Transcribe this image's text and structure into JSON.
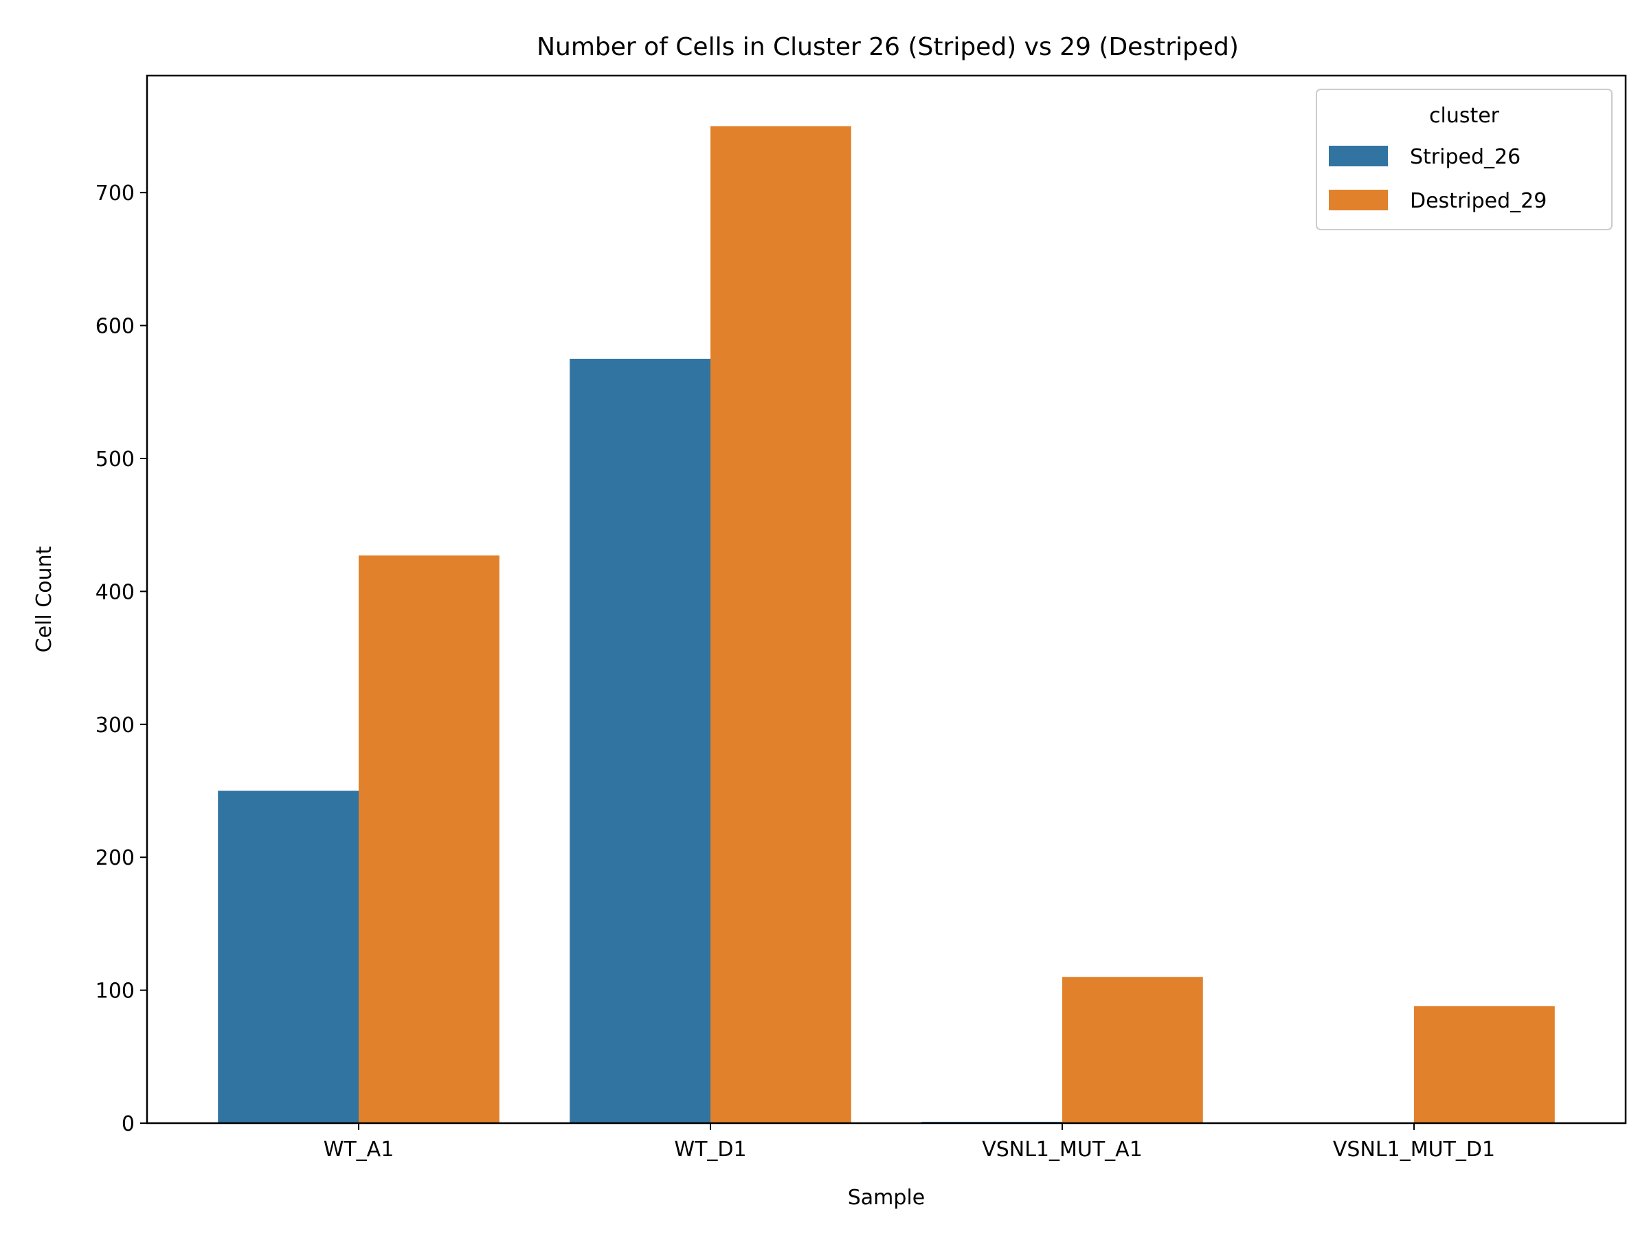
{
  "chart_data": {
    "type": "bar",
    "title": "Number of Cells in Cluster 26 (Striped) vs 29 (Destriped)",
    "xlabel": "Sample",
    "ylabel": "Cell Count",
    "categories": [
      "WT_A1",
      "WT_D1",
      "VSNL1_MUT_A1",
      "VSNL1_MUT_D1"
    ],
    "series": [
      {
        "name": "Striped_26",
        "color": "#3274a1",
        "values": [
          250,
          575,
          1,
          0
        ]
      },
      {
        "name": "Destriped_29",
        "color": "#e1812c",
        "values": [
          427,
          750,
          110,
          88
        ]
      }
    ],
    "ylim": [
      0,
      788
    ],
    "yticks": [
      0,
      100,
      200,
      300,
      400,
      500,
      600,
      700
    ],
    "legend": {
      "title": "cluster",
      "position": "top-right"
    },
    "grid": false
  }
}
